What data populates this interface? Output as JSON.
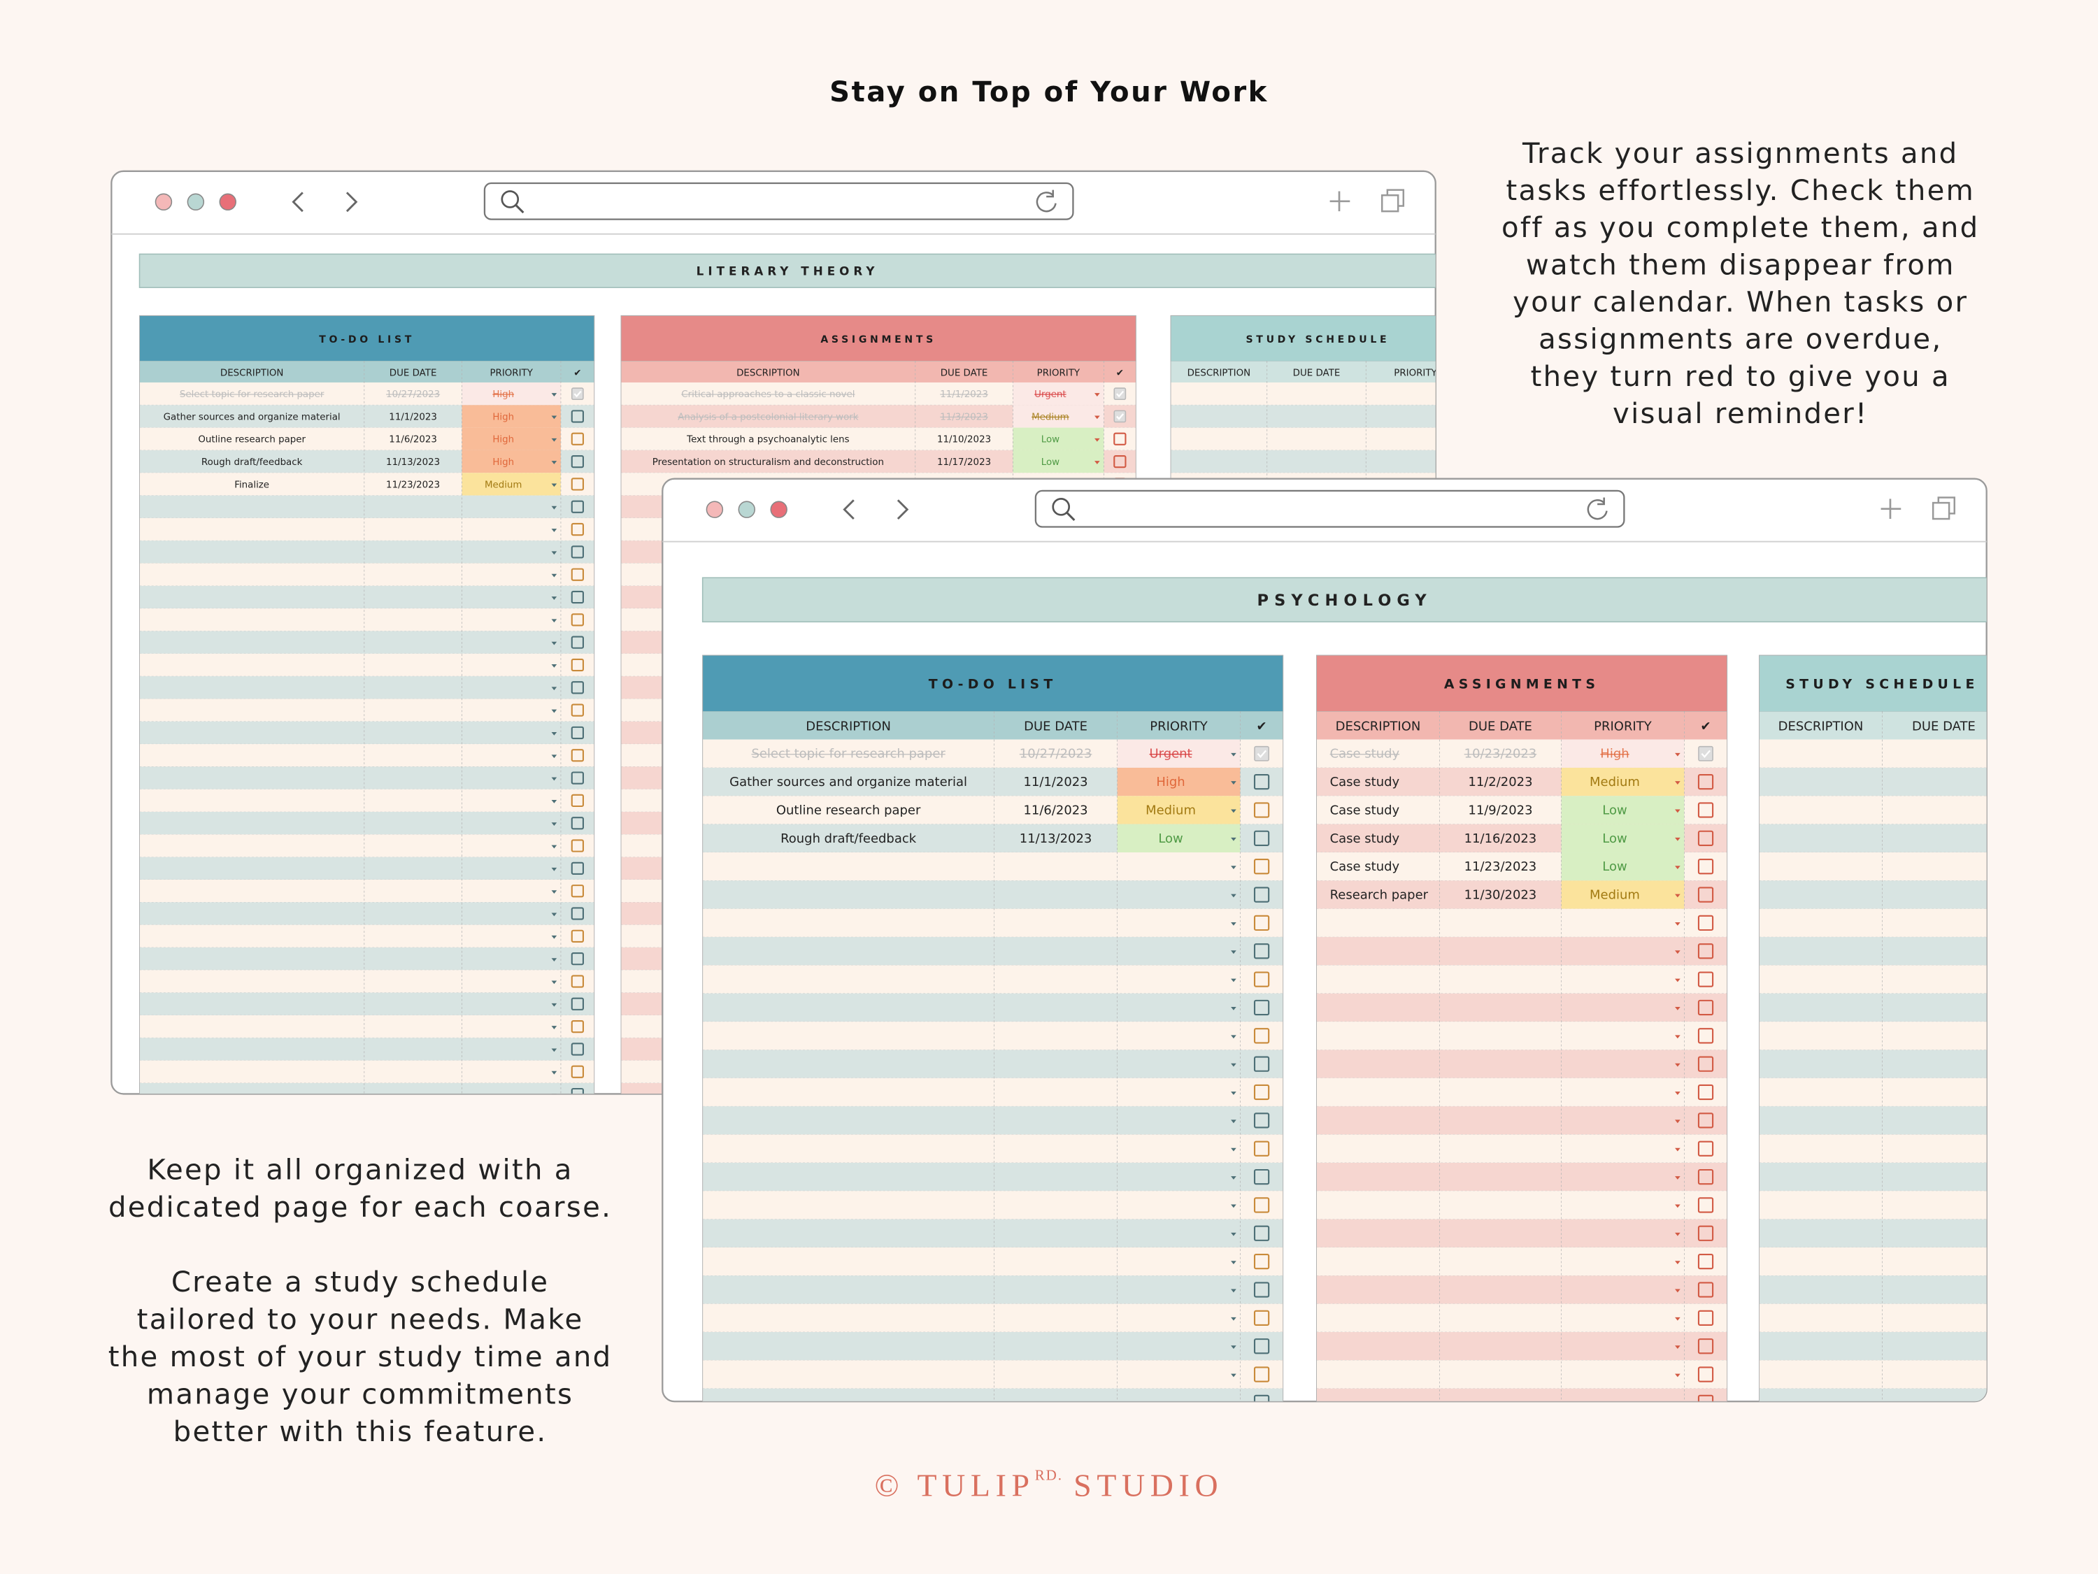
{
  "title": "Stay on Top of Your Work",
  "intro": [
    "Track your assignments and",
    "tasks effortlessly. Check them",
    "off as you complete them, and",
    "watch them disappear from",
    "your calendar. When tasks or",
    "assignments are overdue,",
    "they turn red to give you a",
    "visual reminder!"
  ],
  "notes": [
    [
      "Keep it all organized with a",
      "dedicated page for each coarse."
    ],
    [
      "Create a study schedule",
      "tailored to your needs. Make",
      "the most of your study time and",
      "manage your commitments",
      "better with this feature."
    ]
  ],
  "footer": {
    "brand": "© TULIP",
    "superscript": "RD.",
    "suffix": "STUDIO"
  },
  "priority_colors": {
    "Urgent": [
      "#f9c6c4",
      "#d6393a"
    ],
    "High": [
      "#f9bc98",
      "#e0673a"
    ],
    "Medium": [
      "#fbe39c",
      "#a27a12"
    ],
    "Low": [
      "#d8efc3",
      "#4f9a45"
    ]
  },
  "windows": [
    {
      "course": "LITERARY THEORY",
      "tables": [
        {
          "title": "TO-DO LIST",
          "columns": [
            "DESCRIPTION",
            "DUE DATE",
            "PRIORITY",
            "✔"
          ],
          "rows": [
            {
              "description": "Select topic for research paper",
              "due_date": "10/27/2023",
              "priority": "High",
              "done": true
            },
            {
              "description": "Gather sources and organize material",
              "due_date": "11/1/2023",
              "priority": "High",
              "done": false
            },
            {
              "description": "Outline research paper",
              "due_date": "11/6/2023",
              "priority": "High",
              "done": false
            },
            {
              "description": "Rough draft/feedback",
              "due_date": "11/13/2023",
              "priority": "High",
              "done": false
            },
            {
              "description": "Finalize",
              "due_date": "11/23/2023",
              "priority": "Medium",
              "done": false
            }
          ]
        },
        {
          "title": "ASSIGNMENTS",
          "columns": [
            "DESCRIPTION",
            "DUE DATE",
            "PRIORITY",
            "✔"
          ],
          "rows": [
            {
              "description": "Critical approaches to a classic novel",
              "due_date": "11/1/2023",
              "priority": "Urgent",
              "done": true
            },
            {
              "description": "Analysis of a postcolonial literary work",
              "due_date": "11/3/2023",
              "priority": "Medium",
              "done": true
            },
            {
              "description": "Text through a psychoanalytic lens",
              "due_date": "11/10/2023",
              "priority": "Low",
              "done": false
            },
            {
              "description": "Presentation on structuralism and deconstruction",
              "due_date": "11/17/2023",
              "priority": "Low",
              "done": false
            }
          ]
        },
        {
          "title": "STUDY SCHEDULE",
          "columns": [
            "DESCRIPTION",
            "DUE DATE",
            "PRIORITY"
          ],
          "rows": []
        }
      ]
    },
    {
      "course": "PSYCHOLOGY",
      "tables": [
        {
          "title": "TO-DO LIST",
          "columns": [
            "DESCRIPTION",
            "DUE DATE",
            "PRIORITY",
            "✔"
          ],
          "rows": [
            {
              "description": "Select topic for research paper",
              "due_date": "10/27/2023",
              "priority": "Urgent",
              "done": true
            },
            {
              "description": "Gather sources and organize material",
              "due_date": "11/1/2023",
              "priority": "High",
              "done": false
            },
            {
              "description": "Outline research paper",
              "due_date": "11/6/2023",
              "priority": "Medium",
              "done": false
            },
            {
              "description": "Rough draft/feedback",
              "due_date": "11/13/2023",
              "priority": "Low",
              "done": false
            }
          ]
        },
        {
          "title": "ASSIGNMENTS",
          "columns": [
            "DESCRIPTION",
            "DUE DATE",
            "PRIORITY",
            "✔"
          ],
          "rows": [
            {
              "description": "Case study",
              "due_date": "10/23/2023",
              "priority": "High",
              "done": true
            },
            {
              "description": "Case study",
              "due_date": "11/2/2023",
              "priority": "Medium",
              "done": false
            },
            {
              "description": "Case study",
              "due_date": "11/9/2023",
              "priority": "Low",
              "done": false
            },
            {
              "description": "Case study",
              "due_date": "11/16/2023",
              "priority": "Low",
              "done": false
            },
            {
              "description": "Case study",
              "due_date": "11/23/2023",
              "priority": "Low",
              "done": false
            },
            {
              "description": "Research paper",
              "due_date": "11/30/2023",
              "priority": "Medium",
              "done": false
            }
          ]
        },
        {
          "title": "STUDY SCHEDULE",
          "columns": [
            "DESCRIPTION",
            "DUE DATE"
          ],
          "rows": []
        }
      ]
    }
  ]
}
